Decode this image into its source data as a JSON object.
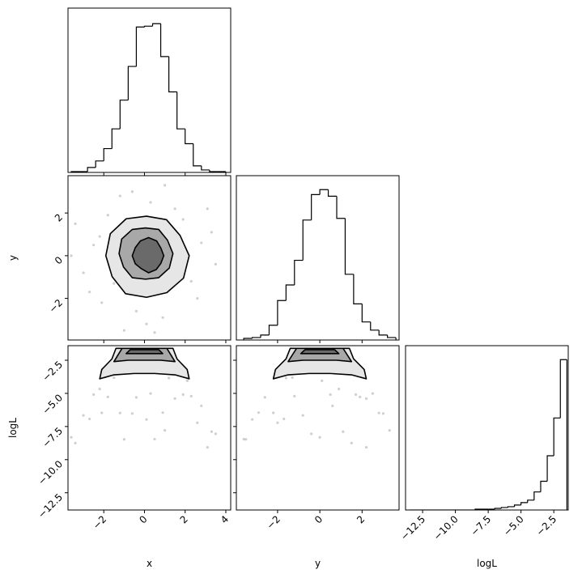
{
  "chart_data": [
    {
      "type": "histogram",
      "bins": [
        -3.6,
        -3.2,
        -2.8,
        -2.4,
        -2.0,
        -1.6,
        -1.2,
        -0.8,
        -0.4,
        0.0,
        0.4,
        0.8,
        1.2,
        1.6,
        2.0,
        2.4,
        2.8,
        3.2,
        3.6,
        4.0
      ],
      "values": [
        1,
        1,
        6,
        14,
        29,
        53,
        88,
        129,
        177,
        178,
        181,
        141,
        98,
        53,
        35,
        8,
        3,
        1,
        1
      ],
      "xlim": [
        -3.76,
        4.24
      ],
      "ylim": [
        0,
        200
      ],
      "xticks": [
        -2,
        0,
        2,
        4
      ],
      "color": "#000000"
    },
    {
      "type": "scatter",
      "xlim": [
        -3.76,
        4.24
      ],
      "ylim": [
        -3.95,
        3.75
      ],
      "xticks": [
        -2,
        0,
        2,
        4
      ],
      "yticks": [
        {
          "value": -2,
          "label": "−2"
        },
        {
          "value": 0,
          "label": "0"
        },
        {
          "value": 2,
          "label": "2"
        }
      ],
      "ylabel": "y",
      "color": "#bbbbbb",
      "x": [
        -2.5,
        2.3,
        -1.8,
        1.5,
        -0.4,
        2.8,
        -3.0,
        0.9,
        -1.2,
        3.3,
        -3.4,
        0.5,
        -2.1,
        1.9,
        -1.5,
        1.2,
        -0.8,
        2.1,
        -2.2,
        0.3,
        -0.6,
        2.6,
        -2.7,
        3.5,
        -3.6,
        0.1,
        1.0,
        -1.0,
        3.1,
        -1.7
      ],
      "y": [
        0.5,
        -1.2,
        1.9,
        2.2,
        -2.6,
        0.6,
        -0.8,
        -2.9,
        2.8,
        1.1,
        1.5,
        -3.6,
        -2.2,
        1.7,
        -1.3,
        -1.6,
        1.6,
        0.1,
        0.9,
        2.5,
        3.0,
        -2.0,
        -1.7,
        -0.4,
        0.0,
        -3.2,
        3.3,
        -3.5,
        2.2,
        0.2
      ],
      "contours": [
        {
          "x": [
            2.2,
            1.75,
            1.08,
            0.1,
            -0.9,
            -1.68,
            -1.9,
            -1.59,
            -0.93,
            0.1,
            1.1,
            1.92
          ],
          "y": [
            0,
            0.95,
            1.69,
            1.85,
            1.73,
            1.03,
            0,
            -0.98,
            -1.78,
            -1.95,
            -1.73,
            -1.05
          ]
        },
        {
          "x": [
            1.4,
            1.13,
            0.7,
            0.05,
            -0.6,
            -1.12,
            -1.25,
            -1.03,
            -0.6,
            0.05,
            0.7,
            1.22
          ],
          "y": [
            0.1,
            0.73,
            1.23,
            1.3,
            1.23,
            0.78,
            0.1,
            -0.53,
            -1.03,
            -1.1,
            -1.03,
            -0.58
          ]
        },
        {
          "x": [
            0.95,
            0.81,
            0.6,
            0.2,
            -0.2,
            -0.45,
            -0.6,
            -0.45,
            -0.15,
            0.2,
            0.58,
            0.81
          ],
          "y": [
            0,
            0.35,
            0.69,
            0.85,
            0.69,
            0.38,
            0,
            -0.38,
            -0.61,
            -0.8,
            -0.65,
            -0.35
          ]
        }
      ]
    },
    {
      "type": "histogram",
      "bins": [
        -3.6,
        -3.2,
        -2.8,
        -2.4,
        -2.0,
        -1.6,
        -1.2,
        -0.8,
        -0.4,
        0.0,
        0.4,
        0.8,
        1.2,
        1.6,
        2.0,
        2.4,
        2.8,
        3.2,
        3.6
      ],
      "values": [
        2,
        3,
        6,
        18,
        48,
        67,
        97,
        146,
        177,
        183,
        175,
        148,
        80,
        44,
        22,
        12,
        6,
        3
      ],
      "xlim": [
        -3.95,
        3.75
      ],
      "ylim": [
        0,
        200
      ],
      "xticks": [
        -2,
        0,
        2
      ],
      "color": "#000000"
    },
    {
      "type": "scatter",
      "xlim": [
        -3.76,
        4.24
      ],
      "ylim": [
        -13.8,
        -1.4
      ],
      "xticks": [
        {
          "value": -2,
          "label": "−2"
        },
        {
          "value": 0,
          "label": "0"
        },
        {
          "value": 2,
          "label": "2"
        },
        {
          "value": 4,
          "label": "4"
        }
      ],
      "yticks": [
        {
          "value": -12.5,
          "label": "−12.5"
        },
        {
          "value": -10,
          "label": "−10.0"
        },
        {
          "value": -7.5,
          "label": "−7.5"
        },
        {
          "value": -5,
          "label": "−5.0"
        },
        {
          "value": -2.5,
          "label": "−2.5"
        }
      ],
      "xlabel": "x",
      "ylabel": "logL",
      "color": "#bbbbbb",
      "x": [
        -2.5,
        2.3,
        -1.8,
        1.5,
        -0.4,
        2.8,
        -3.0,
        0.9,
        -1.2,
        3.3,
        -3.4,
        0.5,
        -2.1,
        1.9,
        -1.5,
        1.2,
        -0.8,
        2.1,
        -2.2,
        0.3,
        -0.6,
        2.6,
        -2.7,
        3.5,
        -3.6,
        0.1,
        1.0,
        -1.0,
        3.1,
        -1.7
      ],
      "y": [
        -5.09,
        -5.21,
        -5.27,
        -5.39,
        -5.3,
        -5.94,
        -6.66,
        -6.45,
        -6.48,
        -7.89,
        -8.75,
        -8.45,
        -6.47,
        -5.09,
        -3.81,
        -3.84,
        -3.44,
        -4.05,
        -4.67,
        -5.01,
        -6.52,
        -7.22,
        -6.93,
        -8.05,
        -8.32,
        -6.97,
        -7.79,
        -8.47,
        -9.07,
        -3.31
      ],
      "contours": [
        {
          "x": [
            -1.4,
            1.4,
            1.6,
            2.1,
            2.2,
            1.5,
            0.5,
            -0.5,
            -1.5,
            -2.2,
            -2.1,
            -1.6
          ],
          "y": [
            -1.6,
            -1.6,
            -2.4,
            -3.2,
            -3.9,
            -3.6,
            -3.5,
            -3.5,
            -3.6,
            -3.9,
            -3.2,
            -2.4
          ]
        },
        {
          "x": [
            -1.1,
            1.1,
            1.3,
            1.5,
            0.8,
            0,
            -0.8,
            -1.5,
            -1.3
          ],
          "y": [
            -1.6,
            -1.6,
            -2.1,
            -2.6,
            -2.5,
            -2.5,
            -2.5,
            -2.6,
            -2.1
          ]
        },
        {
          "x": [
            -0.7,
            0.7,
            0.9,
            0.3,
            -0.3,
            -0.9
          ],
          "y": [
            -1.7,
            -1.7,
            -2.0,
            -2.0,
            -2.0,
            -2.0
          ]
        }
      ]
    },
    {
      "type": "scatter",
      "xlim": [
        -3.95,
        3.75
      ],
      "ylim": [
        -13.8,
        -1.4
      ],
      "xticks": [
        {
          "value": -2,
          "label": "−2"
        },
        {
          "value": 0,
          "label": "0"
        },
        {
          "value": 2,
          "label": "2"
        }
      ],
      "yticks": [
        -12.5,
        -10,
        -7.5,
        -5,
        -2.5
      ],
      "xlabel": "y",
      "color": "#bbbbbb",
      "x": [
        0.5,
        -1.2,
        1.9,
        2.2,
        -2.6,
        0.6,
        -0.8,
        -2.9,
        2.8,
        1.1,
        1.5,
        -3.6,
        -2.2,
        1.7,
        -1.3,
        -1.6,
        1.6,
        0.1,
        0.9,
        2.5,
        3.0,
        -2.0,
        -1.7,
        -0.4,
        0.0,
        -3.2,
        3.3,
        -3.5,
        2.2,
        0.2
      ],
      "y": [
        -5.09,
        -5.21,
        -5.27,
        -5.39,
        -5.3,
        -5.94,
        -6.66,
        -6.45,
        -6.48,
        -7.89,
        -8.75,
        -8.45,
        -6.47,
        -5.09,
        -3.81,
        -3.84,
        -3.44,
        -4.05,
        -4.67,
        -5.01,
        -6.52,
        -7.22,
        -6.93,
        -8.05,
        -8.32,
        -6.97,
        -7.79,
        -8.47,
        -9.07,
        -3.31
      ],
      "contours": [
        {
          "x": [
            -1.4,
            1.4,
            1.6,
            2.1,
            2.2,
            1.5,
            0.5,
            -0.5,
            -1.5,
            -2.2,
            -2.1,
            -1.6
          ],
          "y": [
            -1.6,
            -1.6,
            -2.4,
            -3.2,
            -3.9,
            -3.6,
            -3.5,
            -3.5,
            -3.6,
            -3.9,
            -3.2,
            -2.4
          ]
        },
        {
          "x": [
            -1.1,
            1.1,
            1.3,
            1.5,
            0.8,
            0,
            -0.8,
            -1.5,
            -1.3
          ],
          "y": [
            -1.6,
            -1.6,
            -2.1,
            -2.6,
            -2.5,
            -2.5,
            -2.5,
            -2.6,
            -2.1
          ]
        },
        {
          "x": [
            -0.7,
            0.7,
            0.9,
            0.3,
            -0.3,
            -0.9
          ],
          "y": [
            -1.7,
            -1.7,
            -2.0,
            -2.0,
            -2.0,
            -2.0
          ]
        }
      ]
    },
    {
      "type": "histogram",
      "bins": [
        -13.5,
        -13.0,
        -12.5,
        -12.0,
        -11.5,
        -11.0,
        -10.5,
        -10.0,
        -9.5,
        -9.0,
        -8.5,
        -8.0,
        -7.5,
        -7.0,
        -6.5,
        -6.0,
        -5.5,
        -5.0,
        -4.5,
        -4.0,
        -3.5,
        -3.0,
        -2.5,
        -2.0,
        -1.5
      ],
      "values": [
        0,
        0,
        0,
        0,
        0,
        0,
        0,
        0,
        0,
        0,
        1,
        1,
        1,
        2,
        3,
        4,
        6,
        9,
        12,
        22,
        35,
        66,
        112,
        183
      ],
      "xlim": [
        -13.8,
        -1.4
      ],
      "ylim": [
        0,
        200
      ],
      "xticks": [
        {
          "value": -12.5,
          "label": "−12.5"
        },
        {
          "value": -10,
          "label": "−10.0"
        },
        {
          "value": -7.5,
          "label": "−7.5"
        },
        {
          "value": -5,
          "label": "−5.0"
        },
        {
          "value": -2.5,
          "label": "−2.5"
        }
      ],
      "xlabel": "logL",
      "color": "#000000"
    }
  ]
}
